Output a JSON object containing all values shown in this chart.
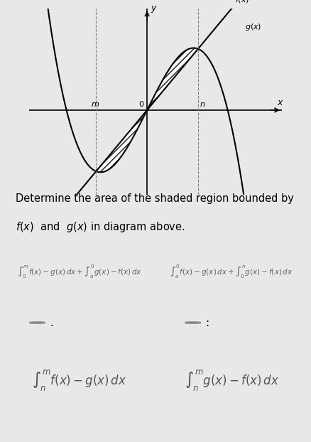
{
  "bg_color": "#e8e8e8",
  "graph_bg": "#f0f0f0",
  "title_text": "Determine the area of the shaded region bounded by\n$f(x)$  and  $g(x)$ in diagram above.",
  "option_A_text": "$\\int_{0}^{m} f(x)-g(x)\\,dx + \\int_{a}^{0} g(x)-f(x)\\,dx$",
  "option_B_text": "$\\int_{a}^{0} f(x)-g(x)\\,dx + \\int_{0}^{n} g(x)-f(x)\\,dx$",
  "option_C_text": "$\\int_{n}^{m} f(x)-g(x)\\,dx$",
  "option_D_text": "$\\int_{n}^{m} g(x)-f(x)\\,dx$",
  "card_bg": "#f5f5f5",
  "border_color": "#cccccc",
  "text_color": "#555555",
  "label_color": "#333333"
}
